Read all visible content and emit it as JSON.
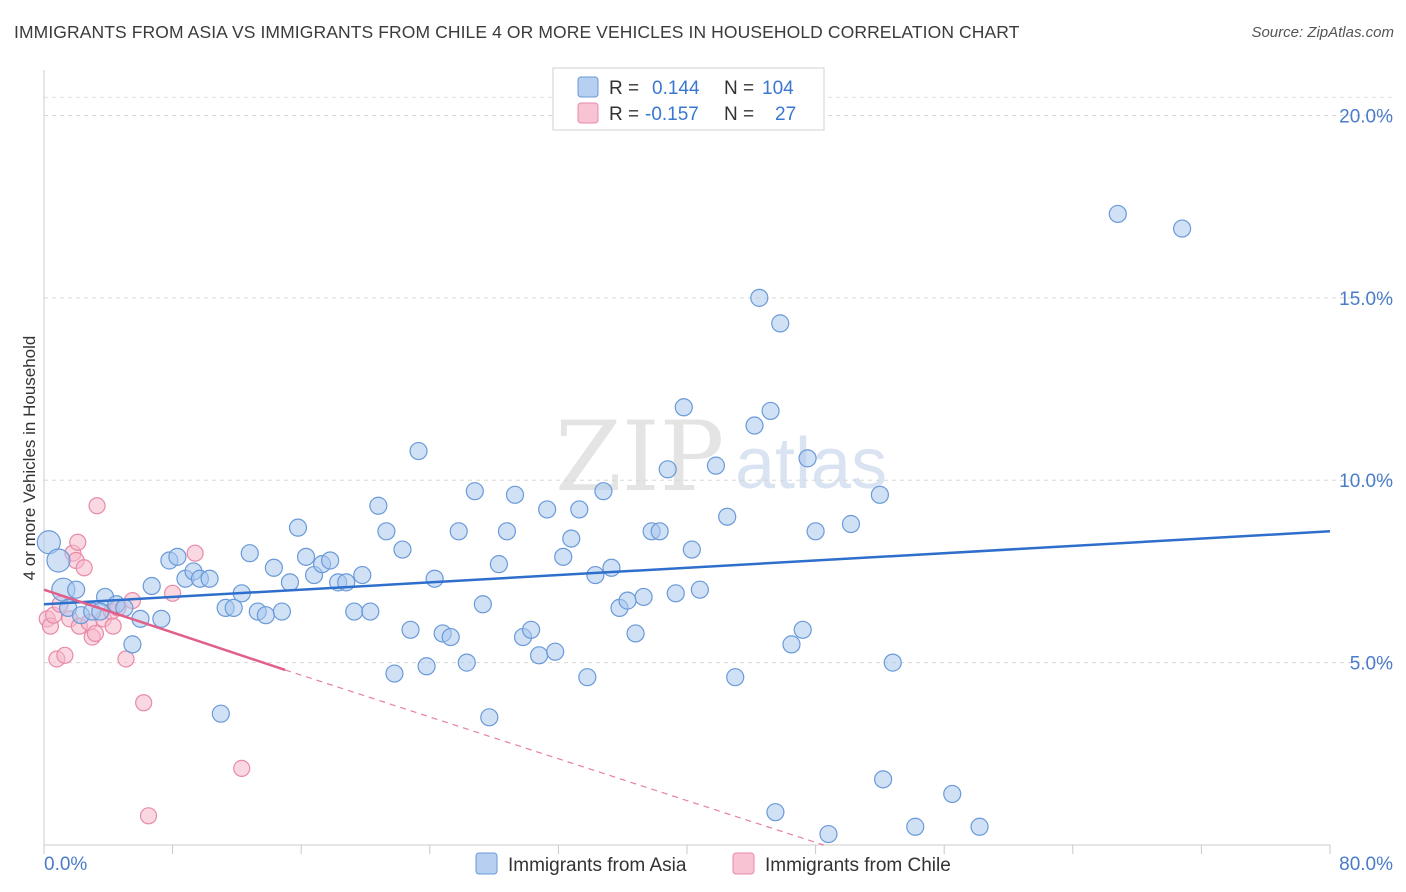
{
  "header": {
    "title": "IMMIGRANTS FROM ASIA VS IMMIGRANTS FROM CHILE 4 OR MORE VEHICLES IN HOUSEHOLD CORRELATION CHART",
    "source": "Source: ZipAtlas.com"
  },
  "watermark": {
    "zip": "ZIP",
    "atlas": "atlas"
  },
  "legend": {
    "r_label": "R =",
    "n_label": "N =",
    "asia": {
      "r": "0.144",
      "n": "104"
    },
    "chile": {
      "r": "-0.157",
      "n": "27"
    }
  },
  "colors": {
    "asia_fill": "#a9c8ef",
    "asia_stroke": "#6a9ad8",
    "asia_line": "#2f6fcc",
    "chile_fill": "#f6b8cb",
    "chile_stroke": "#e88aa8",
    "chile_line": "#e0608a"
  },
  "chart_data": {
    "type": "scatter",
    "title": "IMMIGRANTS FROM ASIA VS IMMIGRANTS FROM CHILE 4 OR MORE VEHICLES IN HOUSEHOLD CORRELATION CHART",
    "xlabel": "",
    "ylabel": "4 or more Vehicles in Household",
    "xlim": [
      0,
      80
    ],
    "ylim": [
      0,
      21
    ],
    "x_tick_labels": [
      "0.0%",
      "80.0%"
    ],
    "y_ticks": [
      5,
      10,
      15,
      20
    ],
    "y_tick_labels": [
      "5.0%",
      "10.0%",
      "15.0%",
      "20.0%"
    ],
    "grid": true,
    "legend_position": "top-center",
    "series": [
      {
        "name": "Immigrants from Asia",
        "r": 0.144,
        "n": 104,
        "trend": {
          "x": [
            0,
            80
          ],
          "y": [
            6.6,
            8.6
          ]
        },
        "points": [
          [
            0.3,
            8.3
          ],
          [
            0.9,
            7.8
          ],
          [
            1.2,
            7.0
          ],
          [
            1.5,
            6.5
          ],
          [
            2.0,
            7.0
          ],
          [
            2.3,
            6.3
          ],
          [
            3.0,
            6.4
          ],
          [
            3.8,
            6.8
          ],
          [
            4.5,
            6.6
          ],
          [
            5.0,
            6.5
          ],
          [
            5.5,
            5.5
          ],
          [
            6.0,
            6.2
          ],
          [
            6.7,
            7.1
          ],
          [
            7.3,
            6.2
          ],
          [
            7.8,
            7.8
          ],
          [
            8.3,
            7.9
          ],
          [
            8.8,
            7.3
          ],
          [
            9.3,
            7.5
          ],
          [
            9.7,
            7.3
          ],
          [
            10.3,
            7.3
          ],
          [
            11.0,
            3.6
          ],
          [
            11.3,
            6.5
          ],
          [
            11.8,
            6.5
          ],
          [
            12.3,
            6.9
          ],
          [
            12.8,
            8.0
          ],
          [
            13.3,
            6.4
          ],
          [
            13.8,
            6.3
          ],
          [
            14.3,
            7.6
          ],
          [
            14.8,
            6.4
          ],
          [
            15.3,
            7.2
          ],
          [
            15.8,
            8.7
          ],
          [
            16.3,
            7.9
          ],
          [
            16.8,
            7.4
          ],
          [
            17.3,
            7.7
          ],
          [
            17.8,
            7.8
          ],
          [
            18.3,
            7.2
          ],
          [
            18.8,
            7.2
          ],
          [
            19.3,
            6.4
          ],
          [
            19.8,
            7.4
          ],
          [
            20.3,
            6.4
          ],
          [
            20.8,
            9.3
          ],
          [
            21.3,
            8.6
          ],
          [
            21.8,
            4.7
          ],
          [
            22.3,
            8.1
          ],
          [
            22.8,
            5.9
          ],
          [
            23.3,
            10.8
          ],
          [
            23.8,
            4.9
          ],
          [
            24.3,
            7.3
          ],
          [
            24.8,
            5.8
          ],
          [
            25.3,
            5.7
          ],
          [
            25.8,
            8.6
          ],
          [
            26.3,
            5.0
          ],
          [
            26.8,
            9.7
          ],
          [
            27.3,
            6.6
          ],
          [
            27.7,
            3.5
          ],
          [
            28.3,
            7.7
          ],
          [
            28.8,
            8.6
          ],
          [
            29.3,
            9.6
          ],
          [
            29.8,
            5.7
          ],
          [
            30.3,
            5.9
          ],
          [
            30.8,
            5.2
          ],
          [
            31.3,
            9.2
          ],
          [
            31.8,
            5.3
          ],
          [
            32.3,
            7.9
          ],
          [
            32.8,
            8.4
          ],
          [
            33.3,
            9.2
          ],
          [
            33.8,
            4.6
          ],
          [
            34.3,
            7.4
          ],
          [
            34.8,
            9.7
          ],
          [
            35.3,
            7.6
          ],
          [
            35.8,
            6.5
          ],
          [
            36.3,
            6.7
          ],
          [
            36.8,
            5.8
          ],
          [
            37.3,
            6.8
          ],
          [
            37.8,
            8.6
          ],
          [
            38.3,
            8.6
          ],
          [
            38.8,
            10.3
          ],
          [
            39.3,
            6.9
          ],
          [
            39.8,
            12.0
          ],
          [
            40.3,
            8.1
          ],
          [
            40.8,
            7.0
          ],
          [
            41.8,
            10.4
          ],
          [
            42.5,
            9.0
          ],
          [
            43.0,
            4.6
          ],
          [
            44.2,
            11.5
          ],
          [
            44.5,
            15.0
          ],
          [
            45.2,
            11.9
          ],
          [
            45.5,
            0.9
          ],
          [
            45.8,
            14.3
          ],
          [
            46.5,
            5.5
          ],
          [
            47.2,
            5.9
          ],
          [
            47.5,
            10.6
          ],
          [
            48.0,
            8.6
          ],
          [
            48.8,
            0.3
          ],
          [
            50.2,
            8.8
          ],
          [
            52.0,
            9.6
          ],
          [
            52.2,
            1.8
          ],
          [
            52.8,
            5.0
          ],
          [
            54.2,
            0.5
          ],
          [
            56.5,
            1.4
          ],
          [
            58.2,
            0.5
          ],
          [
            66.8,
            17.3
          ],
          [
            70.8,
            16.9
          ],
          [
            3.5,
            6.4
          ]
        ]
      },
      {
        "name": "Immigrants from Chile",
        "r": -0.157,
        "n": 27,
        "trend": {
          "x": [
            0,
            15
          ],
          "y": [
            7.0,
            4.8
          ],
          "extension": {
            "x": [
              15,
              48.5
            ],
            "y": [
              4.8,
              0
            ]
          }
        },
        "points": [
          [
            0.2,
            6.2
          ],
          [
            0.4,
            6.0
          ],
          [
            0.6,
            6.3
          ],
          [
            0.8,
            5.1
          ],
          [
            1.0,
            6.6
          ],
          [
            1.3,
            5.2
          ],
          [
            1.6,
            6.2
          ],
          [
            1.8,
            8.0
          ],
          [
            2.0,
            7.8
          ],
          [
            2.1,
            8.3
          ],
          [
            2.2,
            6.0
          ],
          [
            2.5,
            7.6
          ],
          [
            2.8,
            6.1
          ],
          [
            3.0,
            5.7
          ],
          [
            3.2,
            5.8
          ],
          [
            3.3,
            9.3
          ],
          [
            3.7,
            6.2
          ],
          [
            4.2,
            6.4
          ],
          [
            4.3,
            6.0
          ],
          [
            4.6,
            6.5
          ],
          [
            5.1,
            5.1
          ],
          [
            5.5,
            6.7
          ],
          [
            6.2,
            3.9
          ],
          [
            6.5,
            0.8
          ],
          [
            8.0,
            6.9
          ],
          [
            9.4,
            8.0
          ],
          [
            12.3,
            2.1
          ]
        ]
      }
    ]
  },
  "bottom_legend": {
    "asia_label": "Immigrants from Asia",
    "chile_label": "Immigrants from Chile"
  }
}
